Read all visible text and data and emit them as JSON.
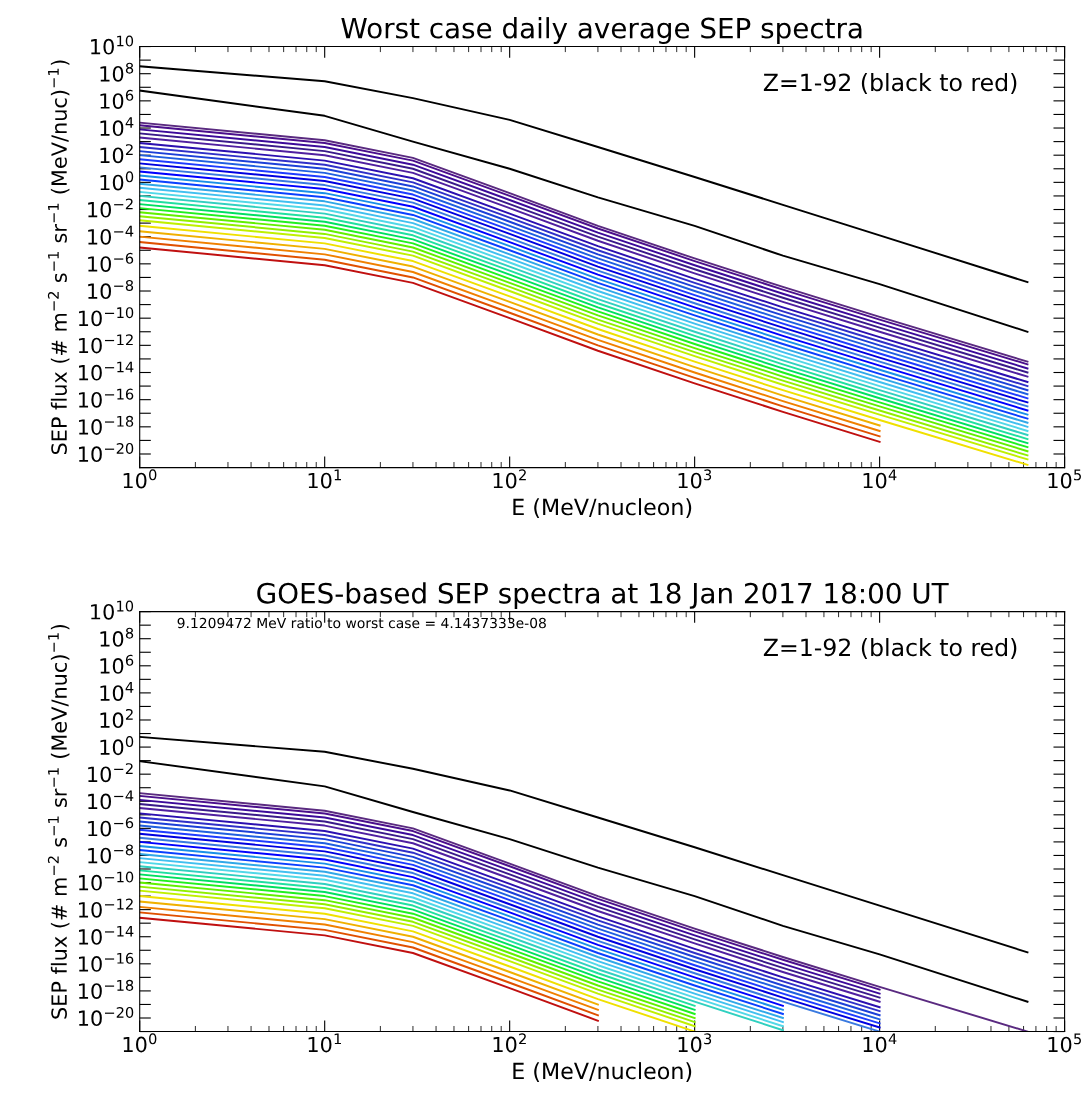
{
  "chart_data": [
    {
      "type": "line",
      "title": "Worst case daily average SEP spectra",
      "xlabel": "E (MeV/nucleon)",
      "ylabel": "SEP flux (# m$^{−2}$ s$^{−1}$ sr$^{−1}$ (MeV/nuc)$^{−1}$)",
      "annotations": [
        "Z=1-92 (black to red)"
      ],
      "xlim": [
        1,
        100000
      ],
      "ylim": [
        1e-21,
        10000000000.0
      ],
      "log": "xy",
      "grid": false,
      "xticks": [
        {
          "value": 1,
          "label": "10$^{0}$"
        },
        {
          "value": 10,
          "label": "10$^{1}$"
        },
        {
          "value": 100,
          "label": "10$^{2}$"
        },
        {
          "value": 1000,
          "label": "10$^{3}$"
        },
        {
          "value": 10000,
          "label": "10$^{4}$"
        },
        {
          "value": 100000,
          "label": "10$^{5}$"
        }
      ],
      "yticks": [
        {
          "value": 10000000000.0,
          "label": "10$^{10}$"
        },
        {
          "value": 1000000000.0,
          "label": null
        },
        {
          "value": 100000000.0,
          "label": "10$^{8}$"
        },
        {
          "value": 10000000.0,
          "label": null
        },
        {
          "value": 1000000.0,
          "label": "10$^{6}$"
        },
        {
          "value": 100000.0,
          "label": null
        },
        {
          "value": 10000.0,
          "label": "10$^{4}$"
        },
        {
          "value": 1000.0,
          "label": null
        },
        {
          "value": 100.0,
          "label": "10$^{2}$"
        },
        {
          "value": 10,
          "label": null
        },
        {
          "value": 1,
          "label": "10$^{0}$"
        },
        {
          "value": 0.1,
          "label": null
        },
        {
          "value": 0.01,
          "label": "10$^{−2}$"
        },
        {
          "value": 0.001,
          "label": null
        },
        {
          "value": 0.0001,
          "label": "10$^{−4}$"
        },
        {
          "value": 1e-05,
          "label": null
        },
        {
          "value": 1e-06,
          "label": "10$^{−6}$"
        },
        {
          "value": 1e-07,
          "label": null
        },
        {
          "value": 1e-08,
          "label": "10$^{−8}$"
        },
        {
          "value": 1e-09,
          "label": null
        },
        {
          "value": 1e-10,
          "label": "10$^{−10}$"
        },
        {
          "value": 1e-11,
          "label": null
        },
        {
          "value": 1e-12,
          "label": "10$^{−12}$"
        },
        {
          "value": 1e-13,
          "label": null
        },
        {
          "value": 1e-14,
          "label": "10$^{−14}$"
        },
        {
          "value": 1e-15,
          "label": null
        },
        {
          "value": 1e-16,
          "label": "10$^{−16}$"
        },
        {
          "value": 1e-17,
          "label": null
        },
        {
          "value": 1e-18,
          "label": "10$^{−18}$"
        },
        {
          "value": 1e-19,
          "label": null
        },
        {
          "value": 1e-20,
          "label": "10$^{−20}$"
        },
        {
          "value": 1e-21,
          "label": null
        }
      ],
      "x": [
        1,
        10,
        30,
        100,
        300,
        1000,
        3000,
        10000,
        63000
      ],
      "series": [
        {
          "color": "#000000",
          "values": [
            350000000.0,
            28000000.0,
            1600000.0,
            40000.0,
            400.0,
            2.5,
            0.022,
            0.000126,
            4.5e-08
          ]
        },
        {
          "color": "#000000",
          "values": [
            5800000.0,
            79000.0,
            1000.0,
            10,
            0.079,
            0.00063,
            4e-06,
            3.2e-08,
            1e-11
          ]
        },
        {
          "color": "#5a2a80",
          "values": [
            25000.0,
            1260.0,
            63,
            0.16,
            0.00063,
            2.5e-06,
            2e-08,
            1.26e-10,
            6.3e-14
          ]
        },
        {
          "color": "#4b0f8c",
          "values": [
            16000.0,
            790.0,
            40,
            0.1,
            0.0004,
            1.6e-06,
            1.26e-08,
            7.9e-11,
            4e-14
          ]
        },
        {
          "color": "#3c0a9a",
          "values": [
            7900.0,
            400.0,
            20,
            0.05,
            0.0002,
            7.9e-07,
            6.3e-09,
            4e-11,
            2e-14
          ]
        },
        {
          "color": "#3a1a8a",
          "values": [
            4000.0,
            200.0,
            10,
            0.025,
            0.0001,
            4e-07,
            3.2e-09,
            2e-11,
            1e-14
          ]
        },
        {
          "color": "#5020a0",
          "values": [
            2000.0,
            100.0,
            5,
            0.0126,
            5e-05,
            2e-07,
            1.6e-09,
            1e-11,
            5e-15
          ]
        },
        {
          "color": "#2c10b0",
          "values": [
            790.0,
            40,
            2,
            0.005,
            2e-05,
            7.9e-08,
            6.3e-10,
            4e-12,
            2e-15
          ]
        },
        {
          "color": "#3030c8",
          "values": [
            400.0,
            20,
            1,
            0.0025,
            1e-05,
            4e-08,
            3.2e-10,
            2e-12,
            1e-15
          ]
        },
        {
          "color": "#1c40d8",
          "values": [
            200.0,
            10,
            0.5,
            0.00126,
            5e-06,
            2e-08,
            1.6e-10,
            1e-12,
            5e-16
          ]
        },
        {
          "color": "#2060e0",
          "values": [
            100.0,
            5,
            0.25,
            0.00063,
            2.5e-06,
            1e-08,
            7.9e-11,
            5e-13,
            2.5e-16
          ]
        },
        {
          "color": "#1e3cff",
          "values": [
            50,
            2.5,
            0.126,
            0.00032,
            1.26e-06,
            5e-09,
            4e-11,
            2.5e-13,
            1.26e-16
          ]
        },
        {
          "color": "#0000e0",
          "values": [
            25,
            1.26,
            0.063,
            0.00016,
            6.3e-07,
            2.5e-09,
            2e-11,
            1.26e-13,
            6.3e-17
          ]
        },
        {
          "color": "#3a7ae0",
          "values": [
            12.6,
            0.63,
            0.032,
            7.9e-05,
            3.2e-07,
            1.26e-09,
            1e-11,
            6.3e-14,
            3.2e-17
          ]
        },
        {
          "color": "#0000ff",
          "values": [
            6.3,
            0.32,
            0.016,
            4e-05,
            1.6e-07,
            6.3e-10,
            5e-12,
            3.2e-14,
            1.6e-17
          ]
        },
        {
          "color": "#1a90e8",
          "values": [
            3.2,
            0.16,
            0.0079,
            2e-05,
            7.9e-08,
            3.2e-10,
            2.5e-12,
            1.6e-14,
            7.9e-18
          ]
        },
        {
          "color": "#0a40ff",
          "values": [
            1.6,
            0.079,
            0.004,
            1e-05,
            4e-08,
            1.6e-10,
            1.26e-12,
            7.9e-15,
            4e-18
          ]
        },
        {
          "color": "#30a8e8",
          "values": [
            0.79,
            0.04,
            0.002,
            5e-06,
            2e-08,
            7.9e-11,
            6.3e-13,
            4e-15,
            2e-18
          ]
        },
        {
          "color": "#40c0f0",
          "values": [
            0.4,
            0.02,
            0.001,
            2.5e-06,
            1e-08,
            4e-11,
            3.2e-13,
            2e-15,
            1e-18
          ]
        },
        {
          "color": "#50d8e8",
          "values": [
            0.2,
            0.01,
            0.0005,
            1.26e-06,
            5e-09,
            2e-11,
            1.6e-13,
            1e-15,
            5e-19
          ]
        },
        {
          "color": "#30d0c0",
          "values": [
            0.1,
            0.005,
            0.00025,
            6.3e-07,
            2.5e-09,
            1e-11,
            7.9e-14,
            5e-16,
            2.5e-19
          ]
        },
        {
          "color": "#20e0a0",
          "values": [
            0.05,
            0.0025,
            0.000126,
            3.2e-07,
            1.26e-09,
            5e-12,
            4e-14,
            2.5e-16,
            1.26e-19
          ]
        },
        {
          "color": "#00e060",
          "values": [
            0.025,
            0.00126,
            6.3e-05,
            1.6e-07,
            6.3e-10,
            2.5e-12,
            2e-14,
            1.26e-16,
            6.3e-20
          ]
        },
        {
          "color": "#20f020",
          "values": [
            0.0126,
            0.00063,
            3.2e-05,
            7.9e-08,
            3.2e-10,
            1.26e-12,
            1e-14,
            6.3e-17,
            3.2e-20
          ]
        },
        {
          "color": "#60f000",
          "values": [
            0.0063,
            0.00032,
            1.6e-05,
            4e-08,
            1.6e-10,
            6.3e-13,
            5e-15,
            3.2e-17,
            1.6e-20
          ]
        },
        {
          "color": "#90f000",
          "values": [
            0.0032,
            0.00016,
            7.9e-06,
            2e-08,
            7.9e-11,
            3.2e-13,
            2.5e-15,
            1.6e-17,
            7.9e-21
          ]
        },
        {
          "color": "#c0f000",
          "values": [
            0.0016,
            7.9e-05,
            4e-06,
            1e-08,
            4e-11,
            1.6e-13,
            1.26e-15,
            7.9e-18,
            4e-21
          ]
        },
        {
          "color": "#f0e000",
          "values": [
            0.00063,
            3.2e-05,
            1.6e-06,
            4e-09,
            1.6e-11,
            6.3e-14,
            5e-16,
            3.2e-18,
            1.6e-21
          ]
        },
        {
          "color": "#f0b000",
          "values": [
            0.00025,
            1.26e-05,
            6.3e-07,
            1.6e-09,
            6.3e-12,
            2.5e-14,
            2e-16,
            1.26e-18,
            null
          ]
        },
        {
          "color": "#f08000",
          "values": [
            0.0001,
            5e-06,
            2.5e-07,
            6.3e-10,
            2.5e-12,
            1e-14,
            7.9e-17,
            5e-19,
            null
          ]
        },
        {
          "color": "#e05000",
          "values": [
            4e-05,
            2e-06,
            1e-07,
            2.5e-10,
            1e-12,
            4e-15,
            3.2e-17,
            2e-19,
            null
          ]
        },
        {
          "color": "#c01010",
          "values": [
            1.6e-05,
            7.9e-07,
            4e-08,
            1e-10,
            4e-13,
            1.6e-15,
            1.26e-17,
            7.9e-20,
            null
          ]
        }
      ]
    },
    {
      "type": "line",
      "title": "GOES-based SEP spectra at 18 Jan 2017 18:00 UT",
      "xlabel": "E (MeV/nucleon)",
      "ylabel": "SEP flux (# m$^{−2}$ s$^{−1}$ sr$^{−1}$ (MeV/nuc)$^{−1}$)",
      "annotations": [
        "9.1209472 MeV ratio to worst case = 4.1437333e-08",
        "Z=1-92 (black to red)"
      ],
      "xlim": [
        1,
        100000
      ],
      "ylim": [
        1e-21,
        10000000000.0
      ],
      "log": "xy",
      "grid": false,
      "xticks": [
        {
          "value": 1,
          "label": "10$^{0}$"
        },
        {
          "value": 10,
          "label": "10$^{1}$"
        },
        {
          "value": 100,
          "label": "10$^{2}$"
        },
        {
          "value": 1000,
          "label": "10$^{3}$"
        },
        {
          "value": 10000,
          "label": "10$^{4}$"
        },
        {
          "value": 100000,
          "label": "10$^{5}$"
        }
      ],
      "yticks": [
        {
          "value": 10000000000.0,
          "label": "10$^{10}$"
        },
        {
          "value": 1000000000.0,
          "label": null
        },
        {
          "value": 100000000.0,
          "label": "10$^{8}$"
        },
        {
          "value": 10000000.0,
          "label": null
        },
        {
          "value": 1000000.0,
          "label": "10$^{6}$"
        },
        {
          "value": 100000.0,
          "label": null
        },
        {
          "value": 10000.0,
          "label": "10$^{4}$"
        },
        {
          "value": 1000.0,
          "label": null
        },
        {
          "value": 100.0,
          "label": "10$^{2}$"
        },
        {
          "value": 10,
          "label": null
        },
        {
          "value": 1,
          "label": "10$^{0}$"
        },
        {
          "value": 0.1,
          "label": null
        },
        {
          "value": 0.01,
          "label": "10$^{−2}$"
        },
        {
          "value": 0.001,
          "label": null
        },
        {
          "value": 0.0001,
          "label": "10$^{−4}$"
        },
        {
          "value": 1e-05,
          "label": null
        },
        {
          "value": 1e-06,
          "label": "10$^{−6}$"
        },
        {
          "value": 1e-07,
          "label": null
        },
        {
          "value": 1e-08,
          "label": "10$^{−8}$"
        },
        {
          "value": 1e-09,
          "label": null
        },
        {
          "value": 1e-10,
          "label": "10$^{−10}$"
        },
        {
          "value": 1e-11,
          "label": null
        },
        {
          "value": 1e-12,
          "label": "10$^{−12}$"
        },
        {
          "value": 1e-13,
          "label": null
        },
        {
          "value": 1e-14,
          "label": "10$^{−14}$"
        },
        {
          "value": 1e-15,
          "label": null
        },
        {
          "value": 1e-16,
          "label": "10$^{−16}$"
        },
        {
          "value": 1e-17,
          "label": null
        },
        {
          "value": 1e-18,
          "label": "10$^{−18}$"
        },
        {
          "value": 1e-19,
          "label": null
        },
        {
          "value": 1e-20,
          "label": "10$^{−20}$"
        },
        {
          "value": 1e-21,
          "label": null
        }
      ],
      "x": [
        1,
        10,
        30,
        100,
        300,
        1000,
        3000,
        10000,
        63000
      ],
      "series": [
        {
          "color": "#000000",
          "values": [
            5.6,
            0.45,
            0.025,
            0.00063,
            6.3e-06,
            4e-08,
            3.5e-10,
            2e-12,
            7.1e-16
          ]
        },
        {
          "color": "#000000",
          "values": [
            0.091,
            0.00126,
            1.6e-05,
            1.6e-07,
            1.26e-09,
            1e-11,
            6.3e-14,
            5e-16,
            1.6e-19
          ]
        },
        {
          "color": "#5a2a80",
          "values": [
            0.0004,
            2e-05,
            1e-06,
            2.5e-09,
            1e-11,
            4e-14,
            3.2e-16,
            2e-18,
            1e-21
          ]
        },
        {
          "color": "#4b0f8c",
          "values": [
            0.00025,
            1.26e-05,
            6.3e-07,
            1.6e-09,
            6.3e-12,
            2.5e-14,
            2e-16,
            1.26e-18,
            null
          ]
        },
        {
          "color": "#3c0a9a",
          "values": [
            0.000126,
            6.3e-06,
            3.2e-07,
            7.9e-10,
            3.2e-12,
            1.26e-14,
            1e-16,
            6.3e-19,
            null
          ]
        },
        {
          "color": "#3a1a8a",
          "values": [
            6.3e-05,
            3.2e-06,
            1.6e-07,
            4e-10,
            1.6e-12,
            6.3e-15,
            5e-17,
            3.2e-19,
            null
          ]
        },
        {
          "color": "#5020a0",
          "values": [
            3.2e-05,
            1.6e-06,
            7.9e-08,
            2e-10,
            7.9e-13,
            3.2e-15,
            2.5e-17,
            1.6e-19,
            null
          ]
        },
        {
          "color": "#2c10b0",
          "values": [
            1.26e-05,
            6.3e-07,
            3.2e-08,
            7.9e-11,
            3.2e-13,
            1.26e-15,
            1e-17,
            6.3e-20,
            null
          ]
        },
        {
          "color": "#3030c8",
          "values": [
            6.3e-06,
            3.2e-07,
            1.6e-08,
            4e-11,
            1.6e-13,
            6.3e-16,
            5e-18,
            3.2e-20,
            null
          ]
        },
        {
          "color": "#1c40d8",
          "values": [
            3.2e-06,
            1.6e-07,
            7.9e-09,
            2e-11,
            7.9e-14,
            3.2e-16,
            2.5e-18,
            1.6e-20,
            null
          ]
        },
        {
          "color": "#2060e0",
          "values": [
            1.6e-06,
            7.9e-08,
            4e-09,
            1e-11,
            4e-14,
            1.6e-16,
            1.26e-18,
            7.9e-21,
            null
          ]
        },
        {
          "color": "#1e3cff",
          "values": [
            7.9e-07,
            4e-08,
            2e-09,
            5e-12,
            2e-14,
            7.9e-17,
            6.3e-19,
            4e-21,
            null
          ]
        },
        {
          "color": "#0000e0",
          "values": [
            4e-07,
            2e-08,
            1e-09,
            2.5e-12,
            1e-14,
            4e-17,
            3.2e-19,
            2e-21,
            null
          ]
        },
        {
          "color": "#3a7ae0",
          "values": [
            2e-07,
            1e-08,
            5e-10,
            1.26e-12,
            5e-15,
            2e-17,
            1.6e-19,
            1e-21,
            null
          ]
        },
        {
          "color": "#0000ff",
          "values": [
            1e-07,
            5e-09,
            2.5e-10,
            6.3e-13,
            2.5e-15,
            1e-17,
            7.9e-20,
            null,
            null
          ]
        },
        {
          "color": "#1a90e8",
          "values": [
            5e-08,
            2.5e-09,
            1.26e-10,
            3.2e-13,
            1.26e-15,
            5e-18,
            4e-20,
            null,
            null
          ]
        },
        {
          "color": "#0a40ff",
          "values": [
            2.5e-08,
            1.26e-09,
            6.3e-11,
            1.6e-13,
            6.3e-16,
            2.5e-18,
            2e-20,
            null,
            null
          ]
        },
        {
          "color": "#30a8e8",
          "values": [
            1.26e-08,
            6.3e-10,
            3.2e-11,
            7.9e-14,
            3.2e-16,
            1.26e-18,
            1e-20,
            null,
            null
          ]
        },
        {
          "color": "#40c0f0",
          "values": [
            6.3e-09,
            3.2e-10,
            1.6e-11,
            4e-14,
            1.6e-16,
            6.3e-19,
            5e-21,
            null,
            null
          ]
        },
        {
          "color": "#50d8e8",
          "values": [
            3.2e-09,
            1.6e-10,
            7.9e-12,
            2e-14,
            7.9e-17,
            3.2e-19,
            2.5e-21,
            null,
            null
          ]
        },
        {
          "color": "#30d0c0",
          "values": [
            1.6e-09,
            7.9e-11,
            4e-12,
            1e-14,
            4e-17,
            1.6e-19,
            1.26e-21,
            null,
            null
          ]
        },
        {
          "color": "#20e0a0",
          "values": [
            7.9e-10,
            4e-11,
            2e-12,
            5e-15,
            2e-17,
            7.9e-20,
            null,
            null,
            null
          ]
        },
        {
          "color": "#00e060",
          "values": [
            4e-10,
            2e-11,
            1e-12,
            2.5e-15,
            1e-17,
            4e-20,
            null,
            null,
            null
          ]
        },
        {
          "color": "#20f020",
          "values": [
            2e-10,
            1e-11,
            5e-13,
            1.26e-15,
            5e-18,
            2e-20,
            null,
            null,
            null
          ]
        },
        {
          "color": "#60f000",
          "values": [
            1e-10,
            5e-12,
            2.5e-13,
            6.3e-16,
            2.5e-18,
            1e-20,
            null,
            null,
            null
          ]
        },
        {
          "color": "#90f000",
          "values": [
            5e-11,
            2.5e-12,
            1.26e-13,
            3.2e-16,
            1.26e-18,
            5e-21,
            null,
            null,
            null
          ]
        },
        {
          "color": "#c0f000",
          "values": [
            2.5e-11,
            1.26e-12,
            6.3e-14,
            1.6e-16,
            6.3e-19,
            2.5e-21,
            null,
            null,
            null
          ]
        },
        {
          "color": "#f0e000",
          "values": [
            1e-11,
            5e-13,
            2.5e-14,
            6.3e-17,
            2.5e-19,
            1e-21,
            null,
            null,
            null
          ]
        },
        {
          "color": "#f0b000",
          "values": [
            4e-12,
            2e-13,
            1e-14,
            2.5e-17,
            1e-19,
            null,
            null,
            null,
            null
          ]
        },
        {
          "color": "#f08000",
          "values": [
            1.6e-12,
            7.9e-14,
            4e-15,
            1e-17,
            4e-20,
            null,
            null,
            null,
            null
          ]
        },
        {
          "color": "#e05000",
          "values": [
            6.3e-13,
            3.2e-14,
            1.6e-15,
            4e-18,
            1.6e-20,
            null,
            null,
            null,
            null
          ]
        },
        {
          "color": "#c01010",
          "values": [
            2.5e-13,
            1.26e-14,
            6.3e-16,
            1.6e-18,
            6.3e-21,
            null,
            null,
            null,
            null
          ]
        }
      ]
    }
  ]
}
